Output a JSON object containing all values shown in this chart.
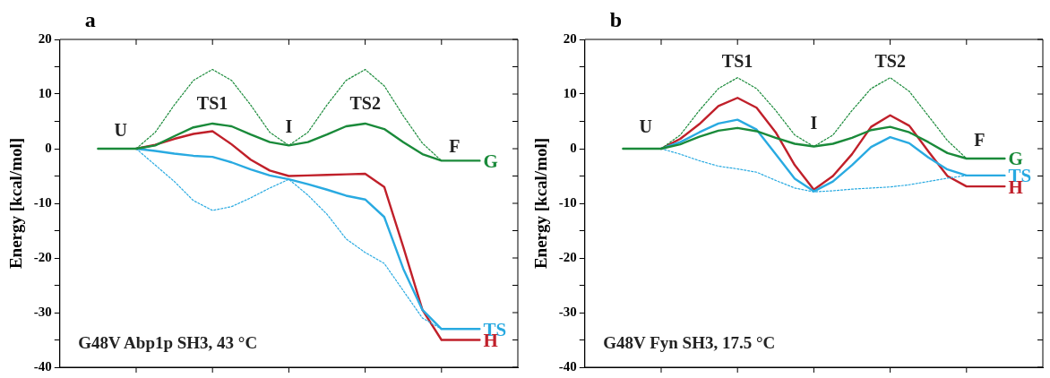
{
  "chart_data": [
    {
      "type": "line",
      "title": "a",
      "ylabel": "Energy [kcal/mol]",
      "categories": [
        null,
        null,
        null,
        null,
        null,
        null,
        null,
        null,
        null,
        null,
        null,
        null,
        null,
        null,
        null,
        null,
        null,
        null,
        null,
        null,
        null,
        null,
        null,
        null,
        null
      ],
      "ylim": [
        -40,
        20
      ],
      "yticks": [
        -40,
        {
          "value": -35,
          "label": null
        },
        -30,
        {
          "value": -25,
          "label": null
        },
        -20,
        {
          "value": -15,
          "label": null
        },
        -10,
        {
          "value": -5,
          "label": null
        },
        0,
        {
          "value": 5,
          "label": null
        },
        10,
        {
          "value": 15,
          "label": null
        },
        20
      ],
      "grid": false,
      "tick_labels": "y",
      "marker": "none",
      "legend": "right",
      "series": [
        {
          "name": "G",
          "color": "#1a8a3a",
          "line_style": "solid",
          "values": [
            null,
            null,
            0,
            0,
            0,
            0.6,
            2.3,
            3.9,
            4.6,
            4.1,
            2.6,
            1.2,
            0.6,
            1.2,
            2.6,
            4.1,
            4.6,
            3.6,
            1.2,
            -1,
            -2.2,
            -2.2,
            -2.2,
            null,
            null
          ]
        },
        {
          "color": "#1a8a3a",
          "line_style": "dotted",
          "values": [
            null,
            null,
            null,
            null,
            0,
            3,
            8,
            12.5,
            14.5,
            12.5,
            8,
            3,
            0.6,
            3,
            8,
            12.5,
            14.5,
            11.5,
            6,
            1,
            -2.2,
            null,
            null,
            null,
            null
          ]
        },
        {
          "name": "TS",
          "color": "#29aae1",
          "line_style": "solid",
          "values": [
            null,
            null,
            null,
            null,
            0,
            -0.4,
            -0.9,
            -1.3,
            -1.5,
            -2.5,
            -3.8,
            -4.9,
            -5.6,
            -6.5,
            -7.5,
            -8.6,
            -9.3,
            -12.5,
            -22,
            -29.5,
            -33,
            -33,
            -33,
            null,
            null
          ]
        },
        {
          "color": "#29aae1",
          "line_style": "dotted",
          "values": [
            null,
            null,
            null,
            null,
            0,
            -3,
            -6,
            -9.5,
            -11.3,
            -10.6,
            -9,
            -7.2,
            -5.6,
            -8.5,
            -12,
            -16.5,
            -19,
            -21,
            -26,
            -31,
            -33,
            null,
            null,
            null,
            null
          ]
        },
        {
          "name": "H",
          "color": "#c0202a",
          "line_style": "solid",
          "values": [
            null,
            null,
            null,
            null,
            0,
            0.7,
            1.8,
            2.7,
            3.2,
            0.8,
            -2,
            -4,
            -5,
            -4.9,
            -4.8,
            -4.7,
            -4.6,
            -7,
            -18,
            -29.5,
            -35,
            -35,
            -35,
            null,
            null
          ]
        }
      ],
      "annotations": [
        "U",
        "TS1",
        "I",
        "TS2",
        "F",
        "G48V Abp1p SH3, 43 °C"
      ]
    },
    {
      "type": "line",
      "title": "b",
      "ylabel": "Energy [kcal/mol]",
      "categories": [
        null,
        null,
        null,
        null,
        null,
        null,
        null,
        null,
        null,
        null,
        null,
        null,
        null,
        null,
        null,
        null,
        null,
        null,
        null,
        null,
        null,
        null,
        null,
        null,
        null
      ],
      "ylim": [
        -40,
        20
      ],
      "yticks": [
        -40,
        {
          "value": -35,
          "label": null
        },
        -30,
        {
          "value": -25,
          "label": null
        },
        -20,
        {
          "value": -15,
          "label": null
        },
        -10,
        {
          "value": -5,
          "label": null
        },
        0,
        {
          "value": 5,
          "label": null
        },
        10,
        {
          "value": 15,
          "label": null
        },
        20
      ],
      "grid": false,
      "tick_labels": "y",
      "marker": "none",
      "legend": "right",
      "series": [
        {
          "name": "G",
          "color": "#1a8a3a",
          "line_style": "solid",
          "values": [
            null,
            null,
            0,
            0,
            0,
            0.8,
            2.2,
            3.3,
            3.8,
            3.2,
            2,
            0.9,
            0.4,
            0.9,
            2,
            3.4,
            4,
            3,
            1.2,
            -0.8,
            -1.8,
            -1.8,
            -1.8,
            null,
            null
          ]
        },
        {
          "color": "#1a8a3a",
          "line_style": "dotted",
          "values": [
            null,
            null,
            null,
            null,
            0,
            2.5,
            7,
            11,
            13,
            11,
            7,
            2.5,
            0.4,
            2.5,
            7,
            11,
            13,
            10.5,
            6,
            1.5,
            -1.8,
            null,
            null,
            null,
            null
          ]
        },
        {
          "name": "TS",
          "color": "#29aae1",
          "line_style": "solid",
          "values": [
            null,
            null,
            null,
            null,
            0,
            1.2,
            3,
            4.6,
            5.3,
            3.5,
            -1,
            -5.5,
            -7.8,
            -6,
            -3,
            0.3,
            2.1,
            1,
            -1.6,
            -3.8,
            -4.9,
            -4.9,
            -4.9,
            null,
            null
          ]
        },
        {
          "color": "#29aae1",
          "line_style": "dotted",
          "values": [
            null,
            null,
            null,
            null,
            0,
            -1,
            -2.2,
            -3.2,
            -3.7,
            -4.3,
            -5.8,
            -7.2,
            -7.9,
            -7.7,
            -7.4,
            -7.2,
            -7,
            -6.6,
            -6,
            -5.4,
            -4.9,
            null,
            null,
            null,
            null
          ]
        },
        {
          "name": "H",
          "color": "#c0202a",
          "line_style": "solid",
          "values": [
            null,
            null,
            null,
            null,
            0,
            1.8,
            4.5,
            7.8,
            9.3,
            7.5,
            3,
            -3,
            -7.5,
            -5,
            -1,
            4,
            6.1,
            4.2,
            -0.5,
            -5,
            -6.9,
            -6.9,
            -6.9,
            null,
            null
          ]
        }
      ],
      "annotations": [
        "U",
        "TS1",
        "I",
        "TS2",
        "F",
        "G48V Fyn SH3, 17.5 °C"
      ]
    }
  ]
}
